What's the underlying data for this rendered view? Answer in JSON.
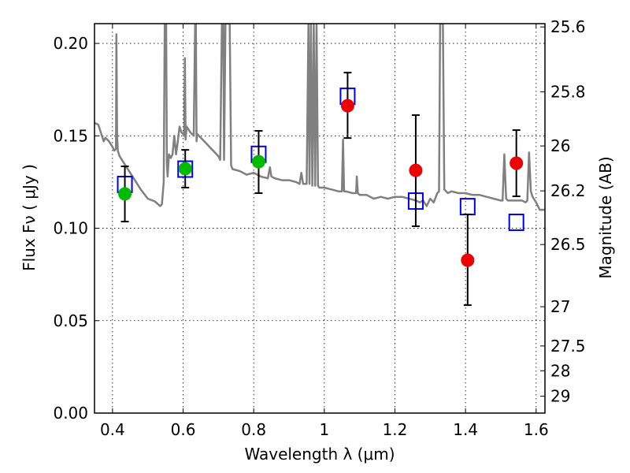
{
  "chart_data": {
    "type": "scatter",
    "title": "",
    "xlabel": "Wavelength  λ (μm)",
    "ylabel": "Flux  Fν  ( μJy )",
    "ylabel_right": "Magnitude (AB)",
    "xlim": [
      0.349,
      1.625
    ],
    "ylim": [
      0.0,
      0.2107
    ],
    "grid": true,
    "x_ticks": [
      0.4,
      0.6,
      0.8,
      1.0,
      1.2,
      1.4,
      1.6
    ],
    "x_tick_labels": [
      "0.4",
      "0.6",
      "0.8",
      "1",
      "1.2",
      "1.4",
      "1.6"
    ],
    "y_ticks": [
      0.0,
      0.05,
      0.1,
      0.15,
      0.2
    ],
    "y_tick_labels": [
      "0.00",
      "0.05",
      "0.10",
      "0.15",
      "0.20"
    ],
    "right_axis": {
      "mag_ticks": [
        25.6,
        25.8,
        26,
        26.2,
        26.5,
        27,
        27.5,
        28,
        29
      ],
      "mag_tick_labels": [
        "25.6",
        "25.8",
        "26",
        "26.2",
        "26.5",
        "27",
        "27.5",
        "28",
        "29"
      ],
      "zero_point_ab": 23.9
    },
    "colors": {
      "spectrum": "#808080",
      "model_square": "#0000ee",
      "detection_green": "#00bb00",
      "detection_red": "#ee0000",
      "errorbar": "#000000"
    },
    "series": [
      {
        "name": "model-photometry",
        "marker": "open-square",
        "x": [
          0.435,
          0.606,
          0.814,
          1.066,
          1.259,
          1.406,
          1.544
        ],
        "y": [
          0.1237,
          0.132,
          0.14,
          0.1714,
          0.1147,
          0.1117,
          0.1032
        ]
      },
      {
        "name": "observed-photometry",
        "marker": "filled-circle",
        "x": [
          0.435,
          0.606,
          0.814,
          1.066,
          1.259,
          1.406,
          1.544
        ],
        "y": [
          0.1186,
          0.1322,
          0.136,
          0.1663,
          0.1313,
          0.0827,
          0.1352
        ],
        "err_low": [
          0.1036,
          0.122,
          0.119,
          0.1488,
          0.1011,
          0.0584,
          0.1173
        ],
        "err_high": [
          0.1335,
          0.1424,
          0.1527,
          0.1842,
          0.1612,
          0.1075,
          0.1531
        ],
        "point_colors": [
          "green",
          "green",
          "green",
          "red",
          "red",
          "red",
          "red"
        ]
      },
      {
        "name": "model-spectrum",
        "marker": "line",
        "x": [
          0.349,
          0.36,
          0.37,
          0.375,
          0.38,
          0.39,
          0.4,
          0.405,
          0.41,
          0.411,
          0.413,
          0.415,
          0.42,
          0.44,
          0.46,
          0.48,
          0.5,
          0.52,
          0.535,
          0.54,
          0.545,
          0.548,
          0.55,
          0.552,
          0.554,
          0.556,
          0.56,
          0.565,
          0.57,
          0.575,
          0.58,
          0.585,
          0.59,
          0.595,
          0.6,
          0.603,
          0.605,
          0.607,
          0.61,
          0.62,
          0.63,
          0.634,
          0.636,
          0.638,
          0.64,
          0.66,
          0.68,
          0.7,
          0.705,
          0.71,
          0.712,
          0.714,
          0.716,
          0.72,
          0.725,
          0.728,
          0.732,
          0.736,
          0.74,
          0.76,
          0.78,
          0.8,
          0.82,
          0.84,
          0.846,
          0.85,
          0.86,
          0.88,
          0.9,
          0.92,
          0.93,
          0.935,
          0.94,
          0.95,
          0.955,
          0.958,
          0.962,
          0.966,
          0.97,
          0.974,
          0.978,
          0.982,
          0.986,
          1.0,
          1.02,
          1.04,
          1.05,
          1.053,
          1.056,
          1.06,
          1.08,
          1.09,
          1.092,
          1.095,
          1.1,
          1.12,
          1.14,
          1.16,
          1.18,
          1.2,
          1.22,
          1.24,
          1.26,
          1.27,
          1.28,
          1.29,
          1.3,
          1.31,
          1.32,
          1.325,
          1.328,
          1.332,
          1.336,
          1.34,
          1.35,
          1.36,
          1.38,
          1.4,
          1.42,
          1.44,
          1.46,
          1.48,
          1.5,
          1.505,
          1.51,
          1.515,
          1.52,
          1.54,
          1.56,
          1.57,
          1.575,
          1.58,
          1.585,
          1.59,
          1.6,
          1.61,
          1.625
        ],
        "y": [
          0.157,
          0.156,
          0.15,
          0.147,
          0.149,
          0.147,
          0.144,
          0.142,
          0.143,
          0.205,
          0.15,
          0.142,
          0.139,
          0.133,
          0.127,
          0.121,
          0.116,
          0.1145,
          0.112,
          0.113,
          0.125,
          0.2107,
          0.2107,
          0.2107,
          0.135,
          0.128,
          0.14,
          0.138,
          0.14,
          0.15,
          0.14,
          0.147,
          0.155,
          0.152,
          0.151,
          0.15,
          0.192,
          0.148,
          0.155,
          0.152,
          0.15,
          0.2107,
          0.2107,
          0.147,
          0.151,
          0.147,
          0.143,
          0.139,
          0.137,
          0.2107,
          0.2107,
          0.2107,
          0.137,
          0.2107,
          0.2107,
          0.2107,
          0.2107,
          0.134,
          0.132,
          0.131,
          0.129,
          0.13,
          0.128,
          0.127,
          0.133,
          0.128,
          0.127,
          0.126,
          0.126,
          0.125,
          0.124,
          0.13,
          0.124,
          0.124,
          0.2107,
          0.124,
          0.2107,
          0.123,
          0.2107,
          0.123,
          0.2107,
          0.123,
          0.122,
          0.122,
          0.121,
          0.12,
          0.12,
          0.148,
          0.12,
          0.12,
          0.119,
          0.119,
          0.128,
          0.119,
          0.118,
          0.118,
          0.116,
          0.117,
          0.116,
          0.117,
          0.117,
          0.116,
          0.115,
          0.114,
          0.115,
          0.112,
          0.116,
          0.114,
          0.119,
          0.12,
          0.2107,
          0.2107,
          0.2107,
          0.121,
          0.119,
          0.12,
          0.119,
          0.119,
          0.118,
          0.118,
          0.117,
          0.116,
          0.115,
          0.115,
          0.14,
          0.116,
          0.115,
          0.115,
          0.115,
          0.114,
          0.115,
          0.141,
          0.12,
          0.117,
          0.114,
          0.11,
          0.11
        ]
      }
    ]
  }
}
